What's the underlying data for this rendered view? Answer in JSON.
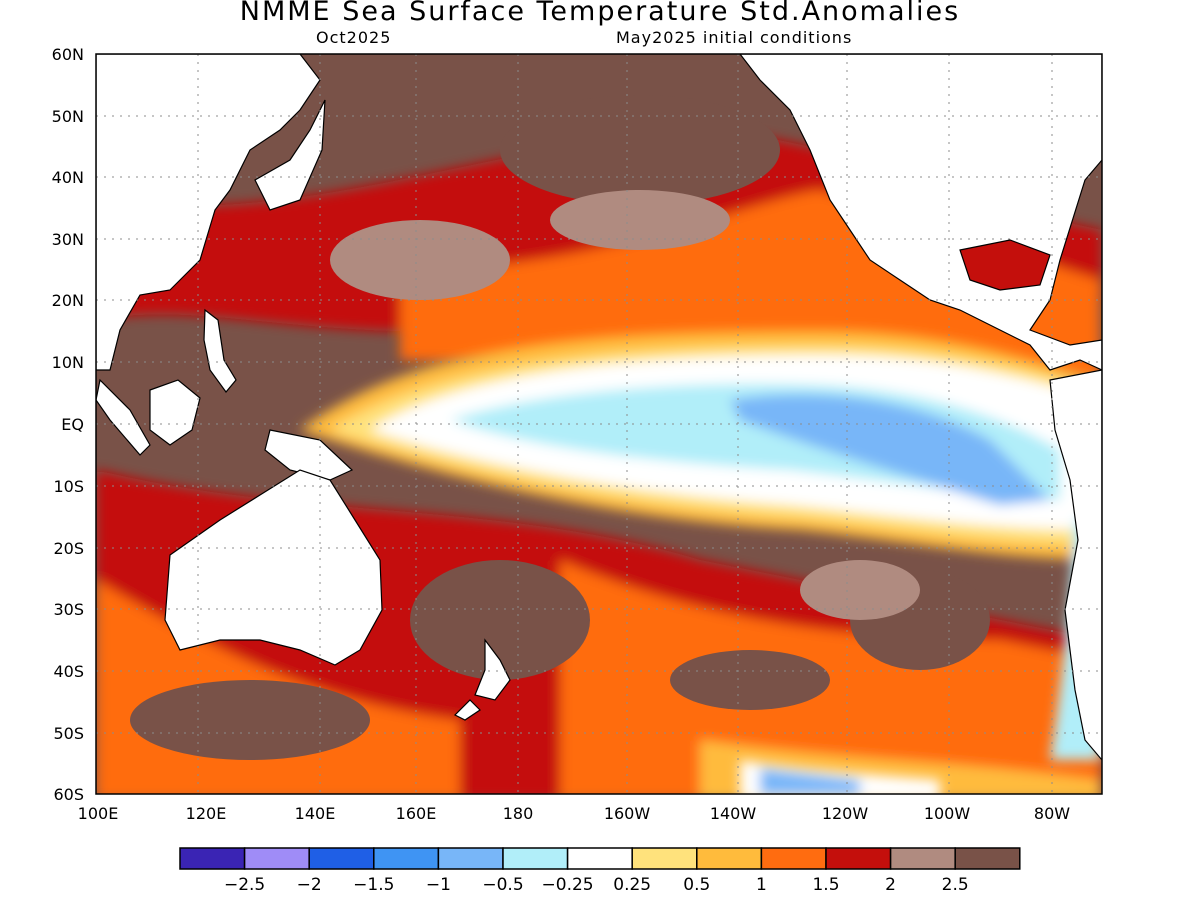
{
  "title": "NMME Sea Surface Temperature Std.Anomalies",
  "target_month": "Oct2025",
  "initial_conditions": "May2025 initial conditions",
  "lat_labels": [
    "60N",
    "50N",
    "40N",
    "30N",
    "20N",
    "10N",
    "EQ",
    "10S",
    "20S",
    "30S",
    "40S",
    "50S",
    "60S"
  ],
  "lon_labels": [
    "100E",
    "120E",
    "140E",
    "160E",
    "180",
    "160W",
    "140W",
    "120W",
    "100W",
    "80W"
  ],
  "colorbar": {
    "colors": [
      "#3a24b4",
      "#9f8cf7",
      "#1f5fe6",
      "#3f94f3",
      "#78b6f8",
      "#b1eef9",
      "#ffffff",
      "#ffe27c",
      "#ffbb3c",
      "#ff6c10",
      "#c40f0c",
      "#b08b80",
      "#795248"
    ],
    "labels": [
      "−2.5",
      "−2",
      "−1.5",
      "−1",
      "−0.5",
      "−0.25",
      "0.25",
      "0.5",
      "1",
      "1.5",
      "2",
      "2.5"
    ]
  }
}
